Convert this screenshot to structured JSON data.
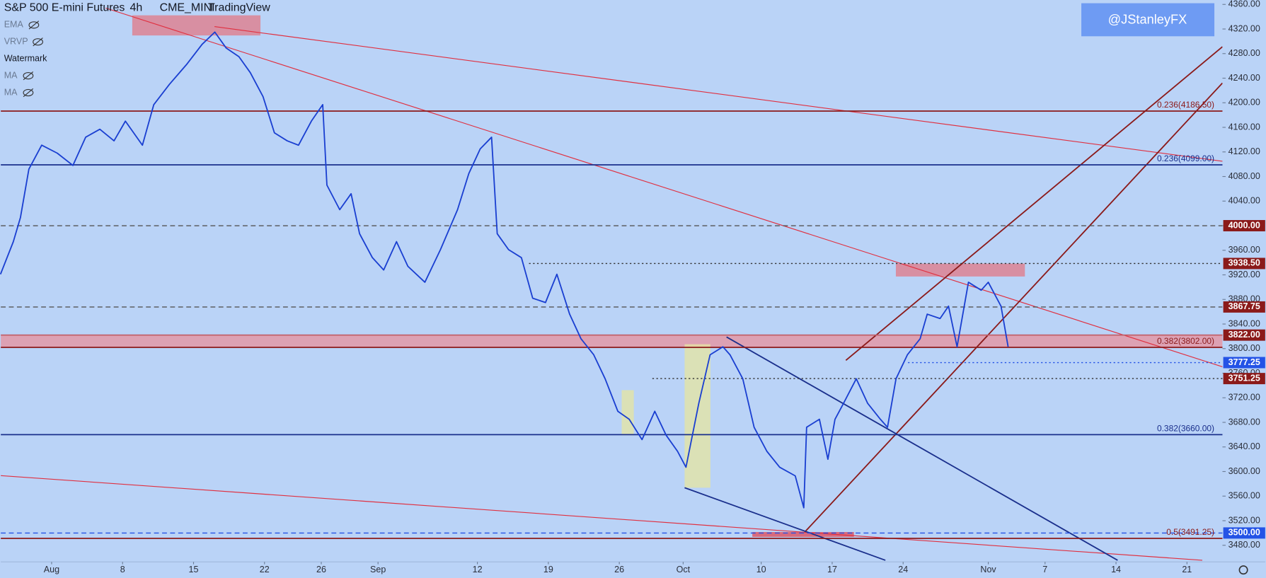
{
  "header": {
    "symbol": "S&P 500 E-mini Futures",
    "interval": "4h",
    "exchange": "CME_MINI",
    "source": "TradingView"
  },
  "indicators": [
    "EMA",
    "VRVP",
    "Watermark",
    "MA",
    "MA"
  ],
  "watermark": "@JStanleyFX",
  "chart_data": {
    "type": "line",
    "color": "#1a3fd1",
    "x": [
      -3.6,
      -2.7,
      -2.2,
      -1.6,
      -0.7,
      0.4,
      1.5,
      2.4,
      3.4,
      4.4,
      5.2,
      6.4,
      7.2,
      8.3,
      9.5,
      10.6,
      11.5,
      12.3,
      13.2,
      14.0,
      14.9,
      15.7,
      16.6,
      17.4,
      18.3,
      19.1,
      19.4,
      20.3,
      21.1,
      21.7,
      22.6,
      23.4,
      24.3,
      25.1,
      26.3,
      27.4,
      28.6,
      29.4,
      30.2,
      31.0,
      31.4,
      32.2,
      33.1,
      33.9,
      34.8,
      35.6,
      36.5,
      37.3,
      38.2,
      39.0,
      39.9,
      40.7,
      41.6,
      42.5,
      43.3,
      44.1,
      44.7,
      45.6,
      46.4,
      47.3,
      47.8,
      48.7,
      49.5,
      50.4,
      51.3,
      52.4,
      53.0,
      53.2,
      54.1,
      54.7,
      55.2,
      55.8,
      56.7,
      57.5,
      58.4,
      58.9,
      59.5,
      60.3,
      61.2,
      61.7,
      62.6,
      63.2,
      63.8,
      64.6,
      65.5,
      66.0,
      66.9,
      67.4
    ],
    "values": [
      3921,
      3974,
      4013,
      4092,
      4131,
      4118,
      4098,
      4144,
      4157,
      4138,
      4170,
      4131,
      4197,
      4230,
      4262,
      4295,
      4315,
      4289,
      4275,
      4249,
      4210,
      4151,
      4138,
      4131,
      4170,
      4197,
      4066,
      4026,
      4052,
      3987,
      3948,
      3928,
      3974,
      3934,
      3908,
      3961,
      4026,
      4085,
      4125,
      4144,
      3987,
      3961,
      3948,
      3882,
      3875,
      3921,
      3856,
      3816,
      3790,
      3751,
      3698,
      3685,
      3652,
      3698,
      3659,
      3633,
      3607,
      3711,
      3790,
      3803,
      3790,
      3751,
      3672,
      3633,
      3607,
      3593,
      3541,
      3672,
      3685,
      3620,
      3685,
      3711,
      3751,
      3711,
      3685,
      3672,
      3751,
      3790,
      3816,
      3856,
      3849,
      3869,
      3803,
      3908,
      3895,
      3908,
      3869,
      3803
    ],
    "xlim": [
      -3.58,
      82.5
    ],
    "xticks": [
      {
        "value": 0,
        "label": "Aug"
      },
      {
        "value": 5,
        "label": "8"
      },
      {
        "value": 10,
        "label": "15"
      },
      {
        "value": 15,
        "label": "22"
      },
      {
        "value": 19,
        "label": "26"
      },
      {
        "value": 23,
        "label": "Sep"
      },
      {
        "value": 30,
        "label": "12"
      },
      {
        "value": 35,
        "label": "19"
      },
      {
        "value": 40,
        "label": "26"
      },
      {
        "value": 44.5,
        "label": "Oct"
      },
      {
        "value": 50,
        "label": "10"
      },
      {
        "value": 55,
        "label": "17"
      },
      {
        "value": 60,
        "label": "24"
      },
      {
        "value": 66,
        "label": "Nov"
      },
      {
        "value": 70,
        "label": "7"
      },
      {
        "value": 75,
        "label": "14"
      },
      {
        "value": 80,
        "label": "21"
      }
    ],
    "ylim": [
      3453,
      4367.2
    ],
    "yticks": [
      {
        "value": 4360,
        "label": "4360.00"
      },
      {
        "value": 4320,
        "label": "4320.00"
      },
      {
        "value": 4280,
        "label": "4280.00"
      },
      {
        "value": 4240,
        "label": "4240.00"
      },
      {
        "value": 4200,
        "label": "4200.00"
      },
      {
        "value": 4160,
        "label": "4160.00"
      },
      {
        "value": 4120,
        "label": "4120.00"
      },
      {
        "value": 4080,
        "label": "4080.00"
      },
      {
        "value": 4040,
        "label": "4040.00"
      },
      {
        "value": 4000,
        "label": "4000.00"
      },
      {
        "value": 3960,
        "label": "3960.00"
      },
      {
        "value": 3920,
        "label": "3920.00"
      },
      {
        "value": 3880,
        "label": "3880.00"
      },
      {
        "value": 3840,
        "label": "3840.00"
      },
      {
        "value": 3800,
        "label": "3800.00"
      },
      {
        "value": 3760,
        "label": "3760.00"
      },
      {
        "value": 3720,
        "label": "3720.00"
      },
      {
        "value": 3680,
        "label": "3680.00"
      },
      {
        "value": 3640,
        "label": "3640.00"
      },
      {
        "value": 3600,
        "label": "3600.00"
      },
      {
        "value": 3560,
        "label": "3560.00"
      },
      {
        "value": 3520,
        "label": "3520.00"
      },
      {
        "value": 3480,
        "label": "3480.00"
      }
    ],
    "levels": [
      {
        "value": 4186.5,
        "label": "0.236(4186.50)",
        "color": "#8b1a1a",
        "style": "solid"
      },
      {
        "value": 4099,
        "label": "0.236(4099.00)",
        "color": "#1a2f8c",
        "style": "solid"
      },
      {
        "value": 4000,
        "color": "#555555",
        "style": "dashed"
      },
      {
        "value": 3938.5,
        "color": "#333333",
        "style": "dotted"
      },
      {
        "value": 3867.75,
        "color": "#555555",
        "style": "dashed"
      },
      {
        "value": 3822,
        "color": "#c0606a",
        "style": "solid"
      },
      {
        "value": 3802,
        "label": "0.382(3802.00)",
        "color": "#8b1a1a",
        "style": "solid"
      },
      {
        "value": 3777.25,
        "color": "#2453e6",
        "style": "dotted"
      },
      {
        "value": 3751.25,
        "color": "#333333",
        "style": "dotted"
      },
      {
        "value": 3660,
        "label": "0.382(3660.00)",
        "color": "#1a2f8c",
        "style": "solid"
      },
      {
        "value": 3500,
        "color": "#2453e6",
        "style": "dashed"
      },
      {
        "value": 3491.25,
        "label": "0.5(3491.25)",
        "color": "#8b1a1a",
        "style": "solid"
      }
    ],
    "price_labels": [
      {
        "value": 4000,
        "label": "4000.00",
        "color": "#8b1a1a"
      },
      {
        "value": 3938.5,
        "label": "3938.50",
        "color": "#8b1a1a"
      },
      {
        "value": 3867.75,
        "label": "3867.75",
        "color": "#8b1a1a"
      },
      {
        "value": 3822,
        "label": "3822.00",
        "color": "#8b1a1a"
      },
      {
        "value": 3777.25,
        "label": "3777.25",
        "color": "#2453e6"
      },
      {
        "value": 3751.25,
        "label": "3751.25",
        "color": "#8b1a1a"
      },
      {
        "value": 3500,
        "label": "3500.00",
        "color": "#2453e6"
      }
    ]
  }
}
